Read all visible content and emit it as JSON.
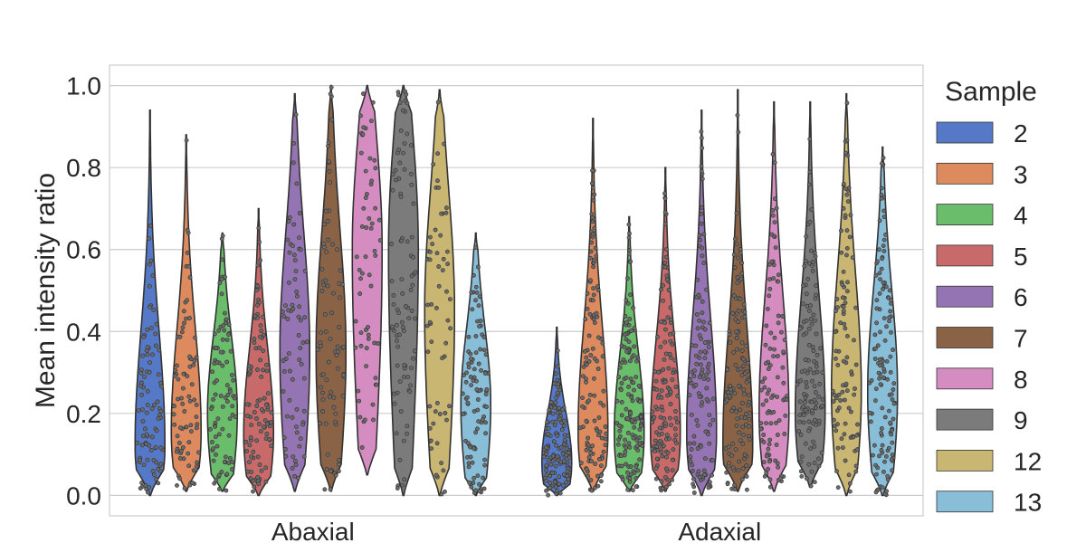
{
  "chart_data": {
    "type": "violin",
    "ylabel": "Mean intensity ratio",
    "ylim": [
      -0.05,
      1.05
    ],
    "yticks": [
      "0.0",
      "0.2",
      "0.4",
      "0.6",
      "0.8",
      "1.0"
    ],
    "categories": [
      "Abaxial",
      "Adaxial"
    ],
    "grid": true,
    "legend": {
      "title": "Sample",
      "placement": "right",
      "entries": [
        "2",
        "3",
        "4",
        "5",
        "6",
        "7",
        "8",
        "9",
        "12",
        "13"
      ],
      "colors": [
        "#5579c6",
        "#dd8a5f",
        "#6abd6a",
        "#c96a6a",
        "#9574b3",
        "#8a6245",
        "#d58cc1",
        "#7b7b7b",
        "#cab673",
        "#88bed8"
      ]
    },
    "series": [
      {
        "name": "2",
        "Abaxial": {
          "min": 0.0,
          "max": 0.94,
          "mode": 0.12,
          "n": 90
        },
        "Adaxial": {
          "min": 0.0,
          "max": 0.41,
          "mode": 0.08,
          "n": 140
        }
      },
      {
        "name": "3",
        "Abaxial": {
          "min": 0.01,
          "max": 0.88,
          "mode": 0.15,
          "n": 80
        },
        "Adaxial": {
          "min": 0.01,
          "max": 0.92,
          "mode": 0.15,
          "n": 120
        }
      },
      {
        "name": "4",
        "Abaxial": {
          "min": 0.01,
          "max": 0.64,
          "mode": 0.2,
          "n": 90
        },
        "Adaxial": {
          "min": 0.01,
          "max": 0.68,
          "mode": 0.15,
          "n": 150
        }
      },
      {
        "name": "5",
        "Abaxial": {
          "min": 0.0,
          "max": 0.7,
          "mode": 0.15,
          "n": 100
        },
        "Adaxial": {
          "min": 0.01,
          "max": 0.8,
          "mode": 0.15,
          "n": 140
        }
      },
      {
        "name": "6",
        "Abaxial": {
          "min": 0.01,
          "max": 0.98,
          "mode": 0.35,
          "n": 70
        },
        "Adaxial": {
          "min": 0.0,
          "max": 0.94,
          "mode": 0.15,
          "n": 120
        }
      },
      {
        "name": "7",
        "Abaxial": {
          "min": 0.01,
          "max": 1.0,
          "mode": 0.35,
          "n": 80
        },
        "Adaxial": {
          "min": 0.01,
          "max": 0.99,
          "mode": 0.12,
          "n": 130
        }
      },
      {
        "name": "8",
        "Abaxial": {
          "min": 0.05,
          "max": 1.0,
          "mode": 0.6,
          "n": 60
        },
        "Adaxial": {
          "min": 0.01,
          "max": 0.96,
          "mode": 0.2,
          "n": 100
        }
      },
      {
        "name": "9",
        "Abaxial": {
          "min": 0.0,
          "max": 1.0,
          "mode": 0.6,
          "n": 90
        },
        "Adaxial": {
          "min": 0.02,
          "max": 0.96,
          "mode": 0.2,
          "n": 120
        }
      },
      {
        "name": "12",
        "Abaxial": {
          "min": 0.0,
          "max": 0.99,
          "mode": 0.45,
          "n": 60
        },
        "Adaxial": {
          "min": 0.0,
          "max": 0.98,
          "mode": 0.25,
          "n": 100
        }
      },
      {
        "name": "13",
        "Abaxial": {
          "min": 0.0,
          "max": 0.64,
          "mode": 0.22,
          "n": 100
        },
        "Adaxial": {
          "min": 0.0,
          "max": 0.85,
          "mode": 0.25,
          "n": 130
        }
      }
    ]
  }
}
